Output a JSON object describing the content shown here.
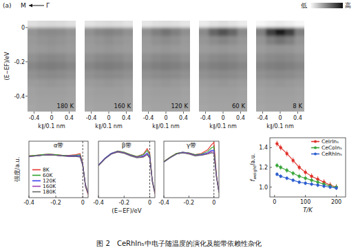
{
  "figure": {
    "label": "(a)",
    "direction": {
      "to": "M",
      "from": "Γ"
    },
    "colorbar": {
      "low": "低",
      "high": "高",
      "range": [
        0,
        1
      ]
    },
    "caption": "图 2　CeRhIn₅中电子随温度的演化及能带依赖性杂化"
  },
  "chart_data": [
    {
      "type": "heatmap",
      "title": "180 K",
      "x": [
        -0.44,
        -0.22,
        0,
        0.22,
        0.44
      ],
      "y": [
        0.025,
        -0.025,
        -0.075,
        -0.125,
        -0.175,
        -0.225,
        -0.275,
        -0.325,
        -0.375,
        -0.425,
        -0.475
      ],
      "cells": [
        [
          0.12,
          0.14,
          0.15,
          0.14,
          0.12
        ],
        [
          0.42,
          0.45,
          0.46,
          0.45,
          0.42
        ],
        [
          0.4,
          0.42,
          0.43,
          0.42,
          0.4
        ],
        [
          0.39,
          0.4,
          0.41,
          0.4,
          0.39
        ],
        [
          0.43,
          0.46,
          0.47,
          0.46,
          0.43
        ],
        [
          0.47,
          0.5,
          0.51,
          0.5,
          0.47
        ],
        [
          0.43,
          0.45,
          0.46,
          0.45,
          0.43
        ],
        [
          0.39,
          0.4,
          0.41,
          0.4,
          0.39
        ],
        [
          0.37,
          0.38,
          0.38,
          0.38,
          0.37
        ],
        [
          0.36,
          0.37,
          0.37,
          0.37,
          0.36
        ],
        [
          0.35,
          0.36,
          0.36,
          0.36,
          0.35
        ]
      ],
      "xlim": [
        -0.55,
        0.55
      ],
      "ylim": [
        -0.49,
        0.04
      ],
      "xticks": [
        -0.4,
        0,
        0.4
      ],
      "yticks": [
        0,
        -0.2,
        -0.4
      ],
      "xlabel": "k∥/0.1 nm",
      "ylabel": "(E−EF)/eV"
    },
    {
      "type": "heatmap",
      "title": "160 K",
      "x": [
        -0.44,
        -0.22,
        0,
        0.22,
        0.44
      ],
      "y": [
        0.025,
        -0.025,
        -0.075,
        -0.125,
        -0.175,
        -0.225,
        -0.275,
        -0.325,
        -0.375,
        -0.425,
        -0.475
      ],
      "cells": [
        [
          0.11,
          0.13,
          0.14,
          0.13,
          0.11
        ],
        [
          0.43,
          0.47,
          0.49,
          0.47,
          0.43
        ],
        [
          0.4,
          0.42,
          0.44,
          0.42,
          0.4
        ],
        [
          0.39,
          0.4,
          0.41,
          0.4,
          0.39
        ],
        [
          0.43,
          0.46,
          0.47,
          0.46,
          0.43
        ],
        [
          0.47,
          0.5,
          0.51,
          0.5,
          0.47
        ],
        [
          0.43,
          0.45,
          0.46,
          0.45,
          0.43
        ],
        [
          0.39,
          0.4,
          0.41,
          0.4,
          0.39
        ],
        [
          0.37,
          0.38,
          0.38,
          0.38,
          0.37
        ],
        [
          0.36,
          0.37,
          0.37,
          0.37,
          0.36
        ],
        [
          0.35,
          0.36,
          0.36,
          0.36,
          0.35
        ]
      ],
      "xlim": [
        -0.55,
        0.55
      ],
      "ylim": [
        -0.49,
        0.04
      ],
      "xticks": [
        -0.4,
        0,
        0.4
      ],
      "xlabel": "k∥/0.1 nm",
      "tick_labels": "x"
    },
    {
      "type": "heatmap",
      "title": "120 K",
      "x": [
        -0.44,
        -0.22,
        0,
        0.22,
        0.44
      ],
      "y": [
        0.025,
        -0.025,
        -0.075,
        -0.125,
        -0.175,
        -0.225,
        -0.275,
        -0.325,
        -0.375,
        -0.425,
        -0.475
      ],
      "cells": [
        [
          0.1,
          0.12,
          0.13,
          0.12,
          0.1
        ],
        [
          0.44,
          0.5,
          0.55,
          0.5,
          0.44
        ],
        [
          0.4,
          0.43,
          0.45,
          0.43,
          0.4
        ],
        [
          0.39,
          0.4,
          0.41,
          0.4,
          0.39
        ],
        [
          0.43,
          0.46,
          0.47,
          0.46,
          0.43
        ],
        [
          0.47,
          0.5,
          0.51,
          0.5,
          0.47
        ],
        [
          0.43,
          0.45,
          0.46,
          0.45,
          0.43
        ],
        [
          0.39,
          0.4,
          0.41,
          0.4,
          0.39
        ],
        [
          0.37,
          0.38,
          0.38,
          0.38,
          0.37
        ],
        [
          0.36,
          0.37,
          0.37,
          0.37,
          0.36
        ],
        [
          0.35,
          0.36,
          0.36,
          0.36,
          0.35
        ]
      ],
      "xlim": [
        -0.55,
        0.55
      ],
      "ylim": [
        -0.49,
        0.04
      ],
      "xticks": [
        -0.4,
        0,
        0.4
      ],
      "xlabel": "k∥/0.1 nm",
      "tick_labels": "x"
    },
    {
      "type": "heatmap",
      "title": "60 K",
      "x": [
        -0.44,
        -0.22,
        0,
        0.22,
        0.44
      ],
      "y": [
        0.025,
        -0.025,
        -0.075,
        -0.125,
        -0.175,
        -0.225,
        -0.275,
        -0.325,
        -0.375,
        -0.425,
        -0.475
      ],
      "cells": [
        [
          0.08,
          0.11,
          0.13,
          0.11,
          0.08
        ],
        [
          0.46,
          0.6,
          0.68,
          0.6,
          0.46
        ],
        [
          0.41,
          0.45,
          0.48,
          0.45,
          0.41
        ],
        [
          0.39,
          0.4,
          0.41,
          0.4,
          0.39
        ],
        [
          0.43,
          0.46,
          0.47,
          0.46,
          0.43
        ],
        [
          0.47,
          0.5,
          0.51,
          0.5,
          0.47
        ],
        [
          0.43,
          0.45,
          0.46,
          0.45,
          0.43
        ],
        [
          0.39,
          0.4,
          0.41,
          0.4,
          0.39
        ],
        [
          0.37,
          0.38,
          0.38,
          0.38,
          0.37
        ],
        [
          0.36,
          0.37,
          0.37,
          0.37,
          0.36
        ],
        [
          0.35,
          0.36,
          0.36,
          0.36,
          0.35
        ]
      ],
      "xlim": [
        -0.55,
        0.55
      ],
      "ylim": [
        -0.49,
        0.04
      ],
      "xticks": [
        -0.4,
        0,
        0.4
      ],
      "xlabel": "k∥/0.1 nm",
      "tick_labels": "x"
    },
    {
      "type": "heatmap",
      "title": "8 K",
      "x": [
        -0.44,
        -0.22,
        0,
        0.22,
        0.44
      ],
      "y": [
        0.025,
        -0.025,
        -0.075,
        -0.125,
        -0.175,
        -0.225,
        -0.275,
        -0.325,
        -0.375,
        -0.425,
        -0.475
      ],
      "cells": [
        [
          0.03,
          0.06,
          0.08,
          0.06,
          0.03
        ],
        [
          0.5,
          0.75,
          0.88,
          0.75,
          0.5
        ],
        [
          0.42,
          0.5,
          0.55,
          0.5,
          0.42
        ],
        [
          0.39,
          0.41,
          0.42,
          0.41,
          0.39
        ],
        [
          0.43,
          0.46,
          0.47,
          0.46,
          0.43
        ],
        [
          0.47,
          0.5,
          0.51,
          0.5,
          0.47
        ],
        [
          0.43,
          0.45,
          0.46,
          0.45,
          0.43
        ],
        [
          0.39,
          0.4,
          0.41,
          0.4,
          0.39
        ],
        [
          0.37,
          0.38,
          0.38,
          0.38,
          0.37
        ],
        [
          0.36,
          0.37,
          0.37,
          0.37,
          0.36
        ],
        [
          0.35,
          0.36,
          0.36,
          0.36,
          0.35
        ]
      ],
      "xlim": [
        -0.55,
        0.55
      ],
      "ylim": [
        -0.49,
        0.04
      ],
      "xticks": [
        -0.4,
        0,
        0.4
      ],
      "xlabel": "k∥/0.1 nm",
      "tick_labels": "x"
    },
    {
      "type": "line",
      "title": "α带",
      "x": [
        -0.4,
        -0.35,
        -0.3,
        -0.25,
        -0.2,
        -0.15,
        -0.1,
        -0.05,
        -0.02,
        0,
        0.02,
        0.04
      ],
      "series": [
        {
          "name": "8K",
          "color": "#e8322b",
          "values": [
            0.68,
            0.69,
            0.7,
            0.71,
            0.7,
            0.69,
            0.69,
            0.7,
            0.72,
            0.56,
            0.18,
            0.05
          ]
        },
        {
          "name": "60K",
          "color": "#2ca02c",
          "values": [
            0.68,
            0.69,
            0.7,
            0.71,
            0.7,
            0.69,
            0.68,
            0.69,
            0.7,
            0.55,
            0.19,
            0.06
          ]
        },
        {
          "name": "120K",
          "color": "#3b3bf0",
          "values": [
            0.67,
            0.68,
            0.69,
            0.7,
            0.69,
            0.68,
            0.68,
            0.68,
            0.68,
            0.54,
            0.2,
            0.07
          ]
        },
        {
          "name": "160K",
          "color": "#9b3fb5",
          "values": [
            0.67,
            0.68,
            0.69,
            0.7,
            0.69,
            0.68,
            0.67,
            0.67,
            0.67,
            0.53,
            0.21,
            0.07
          ]
        },
        {
          "name": "180K",
          "color": "#666666",
          "values": [
            0.67,
            0.68,
            0.69,
            0.69,
            0.69,
            0.68,
            0.67,
            0.67,
            0.66,
            0.52,
            0.22,
            0.08
          ]
        }
      ],
      "xlim": [
        -0.4,
        0.04
      ],
      "ylim": [
        0,
        0.92
      ],
      "xticks": [
        -0.4,
        -0.2,
        0
      ],
      "ylabel": "强度/a.u.",
      "legend": "lower left",
      "tick_labels": "x",
      "vline": {
        "x": 0,
        "line_style": "dashed"
      }
    },
    {
      "type": "line",
      "title": "β带",
      "x": [
        -0.4,
        -0.35,
        -0.3,
        -0.25,
        -0.2,
        -0.15,
        -0.1,
        -0.05,
        -0.02,
        0,
        0.02,
        0.04
      ],
      "series": [
        {
          "color": "#e8322b",
          "values": [
            0.53,
            0.64,
            0.72,
            0.76,
            0.74,
            0.7,
            0.67,
            0.71,
            0.8,
            0.72,
            0.26,
            0.06
          ]
        },
        {
          "color": "#2ca02c",
          "values": [
            0.53,
            0.64,
            0.72,
            0.76,
            0.74,
            0.7,
            0.67,
            0.7,
            0.77,
            0.7,
            0.26,
            0.07
          ]
        },
        {
          "color": "#3b3bf0",
          "values": [
            0.53,
            0.64,
            0.72,
            0.75,
            0.73,
            0.69,
            0.66,
            0.68,
            0.73,
            0.67,
            0.27,
            0.08
          ]
        },
        {
          "color": "#9b3fb5",
          "values": [
            0.52,
            0.63,
            0.71,
            0.75,
            0.73,
            0.69,
            0.66,
            0.67,
            0.71,
            0.65,
            0.28,
            0.08
          ]
        },
        {
          "color": "#666666",
          "values": [
            0.52,
            0.63,
            0.71,
            0.74,
            0.72,
            0.68,
            0.65,
            0.66,
            0.7,
            0.64,
            0.28,
            0.09
          ]
        }
      ],
      "xlim": [
        -0.4,
        0.04
      ],
      "ylim": [
        0,
        0.92
      ],
      "xticks": [
        -0.4,
        -0.2,
        0
      ],
      "xlabel": "(E−EF)/eV",
      "tick_labels": "x",
      "vline": {
        "x": 0,
        "line_style": "dashed"
      }
    },
    {
      "type": "line",
      "title": "γ带",
      "x": [
        -0.4,
        -0.35,
        -0.3,
        -0.25,
        -0.2,
        -0.15,
        -0.1,
        -0.05,
        -0.02,
        0,
        0.02,
        0.04
      ],
      "series": [
        {
          "color": "#e8322b",
          "values": [
            0.59,
            0.66,
            0.72,
            0.74,
            0.73,
            0.7,
            0.72,
            0.78,
            0.86,
            0.9,
            0.38,
            0.08
          ]
        },
        {
          "color": "#2ca02c",
          "values": [
            0.59,
            0.66,
            0.72,
            0.74,
            0.73,
            0.7,
            0.71,
            0.75,
            0.81,
            0.83,
            0.36,
            0.08
          ]
        },
        {
          "color": "#3b3bf0",
          "values": [
            0.58,
            0.65,
            0.71,
            0.74,
            0.72,
            0.69,
            0.7,
            0.73,
            0.77,
            0.77,
            0.35,
            0.09
          ]
        },
        {
          "color": "#9b3fb5",
          "values": [
            0.58,
            0.65,
            0.71,
            0.73,
            0.72,
            0.69,
            0.69,
            0.72,
            0.75,
            0.74,
            0.34,
            0.09
          ]
        },
        {
          "color": "#666666",
          "values": [
            0.58,
            0.65,
            0.71,
            0.73,
            0.71,
            0.68,
            0.69,
            0.71,
            0.73,
            0.72,
            0.33,
            0.09
          ]
        }
      ],
      "xlim": [
        -0.4,
        0.04
      ],
      "ylim": [
        0,
        0.92
      ],
      "xticks": [
        -0.4,
        -0.2,
        0
      ],
      "tick_labels": "x",
      "vline": {
        "x": 0,
        "line_style": "dashed"
      }
    },
    {
      "type": "line",
      "marker": "circle",
      "x": [
        8,
        20,
        40,
        60,
        80,
        100,
        120,
        140,
        160,
        180,
        200
      ],
      "series": [
        {
          "name": "CeIrIn₅",
          "color": "#e0302a",
          "values": [
            1.44,
            1.4,
            1.34,
            1.27,
            1.2,
            1.15,
            1.11,
            1.08,
            1.05,
            1.02,
            1.0
          ],
          "errors": [
            0.03,
            0.03,
            0.03,
            0.03,
            0.03,
            0.03,
            0.03,
            0.03,
            0.03,
            0.03,
            0.03
          ]
        },
        {
          "name": "CeCoIn₅",
          "color": "#3aa63a",
          "values": [
            1.22,
            1.2,
            1.17,
            1.14,
            1.11,
            1.09,
            1.07,
            1.05,
            1.03,
            1.01,
            1.0
          ],
          "errors": [
            0.025,
            0.025,
            0.025,
            0.025,
            0.025,
            0.025,
            0.025,
            0.025,
            0.025,
            0.025,
            0.025
          ]
        },
        {
          "name": "CeRhIn₅",
          "color": "#2f5fd0",
          "values": [
            1.13,
            1.11,
            1.09,
            1.07,
            1.05,
            1.04,
            1.03,
            1.02,
            1.01,
            1.0,
            0.99
          ],
          "errors": [
            0.02,
            0.02,
            0.02,
            0.02,
            0.02,
            0.02,
            0.02,
            0.02,
            0.02,
            0.02,
            0.02
          ]
        }
      ],
      "xlim": [
        -15,
        230
      ],
      "ylim": [
        0.9,
        1.5
      ],
      "xticks": [
        0,
        100,
        200
      ],
      "yticks": [
        {
          "value": 1,
          "label": "1.0"
        },
        1.2,
        1.4
      ],
      "xlabel": "T/K",
      "ylabel": "fweight/a.u.",
      "legend": "upper right"
    }
  ]
}
